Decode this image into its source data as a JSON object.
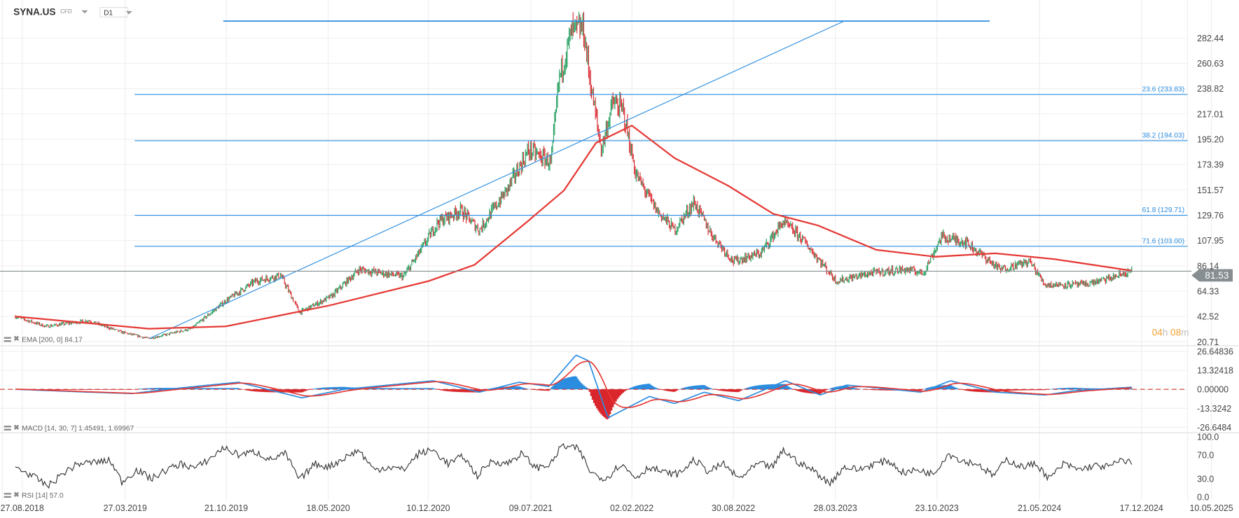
{
  "header": {
    "symbol": "SYNA.US",
    "instrument_type": "CFD",
    "timeframe": "D1"
  },
  "indicators": {
    "ema_label": "EMA [200, 0] 84.17",
    "macd_label": "MACD [14, 30, 7] 1.45491,  1.69967",
    "rsi_label": "RSI [14] 57.0"
  },
  "countdown": {
    "hours": "04",
    "h": "h",
    "minutes": "08",
    "m": "m"
  },
  "colors": {
    "up": "#1e9c5a",
    "down": "#d9262c",
    "ema": "#e53935",
    "fib": "#2b8de0",
    "macd": "#2b8de0",
    "signal": "#e53935",
    "rsi": "#333333",
    "price_tag": "#868e91"
  },
  "chart_data": [
    {
      "type": "line",
      "name": "price",
      "title": "SYNA.US D1",
      "current_price": "81.53",
      "y_ticks": [
        "282.44",
        "260.63",
        "238.82",
        "217.01",
        "195.20",
        "173.39",
        "151.57",
        "129.76",
        "107.95",
        "86.14",
        "64.33",
        "42.52",
        "20.71"
      ],
      "ylim": [
        20.71,
        282.44
      ],
      "x_ticks": [
        "27.08.2018",
        "27.03.2019",
        "21.10.2019",
        "18.05.2020",
        "10.12.2020",
        "09.07.2021",
        "02.02.2022",
        "30.08.2022",
        "28.03.2023",
        "23.10.2023",
        "21.05.2024",
        "17.12.2024",
        "10.05.2025"
      ],
      "x_tick_dates": [
        "2018-08-27",
        "2019-03-27",
        "2019-10-21",
        "2020-05-18",
        "2020-12-10",
        "2021-07-09",
        "2022-02-02",
        "2022-08-30",
        "2023-03-28",
        "2023-10-23",
        "2024-05-21",
        "2024-12-17",
        "2025-05-10"
      ],
      "close": [
        [
          "2018-08-13",
          42.5
        ],
        [
          "2018-10-15",
          34
        ],
        [
          "2019-01-10",
          39
        ],
        [
          "2019-03-20",
          29
        ],
        [
          "2019-05-15",
          23.5
        ],
        [
          "2019-08-10",
          32
        ],
        [
          "2019-10-20",
          56
        ],
        [
          "2019-12-20",
          73
        ],
        [
          "2020-02-10",
          78
        ],
        [
          "2020-03-20",
          46
        ],
        [
          "2020-05-25",
          60
        ],
        [
          "2020-07-20",
          83
        ],
        [
          "2020-10-20",
          77
        ],
        [
          "2020-11-25",
          100
        ],
        [
          "2020-12-30",
          124
        ],
        [
          "2021-02-15",
          134
        ],
        [
          "2021-03-25",
          117
        ],
        [
          "2021-05-20",
          151
        ],
        [
          "2021-07-05",
          186
        ],
        [
          "2021-08-20",
          175
        ],
        [
          "2021-09-05",
          247
        ],
        [
          "2021-10-01",
          288
        ],
        [
          "2021-10-25",
          291
        ],
        [
          "2021-11-10",
          240
        ],
        [
          "2021-12-01",
          186
        ],
        [
          "2021-12-25",
          227
        ],
        [
          "2022-01-15",
          220
        ],
        [
          "2022-02-10",
          165
        ],
        [
          "2022-03-25",
          134
        ],
        [
          "2022-05-01",
          117
        ],
        [
          "2022-06-10",
          141
        ],
        [
          "2022-07-15",
          114
        ],
        [
          "2022-08-30",
          90
        ],
        [
          "2022-10-25",
          97
        ],
        [
          "2022-12-10",
          124
        ],
        [
          "2023-01-15",
          111
        ],
        [
          "2023-02-25",
          90
        ],
        [
          "2023-03-30",
          73
        ],
        [
          "2023-06-10",
          80
        ],
        [
          "2023-08-20",
          83
        ],
        [
          "2023-09-25",
          80
        ],
        [
          "2023-11-01",
          111
        ],
        [
          "2023-12-20",
          107
        ],
        [
          "2024-03-01",
          83
        ],
        [
          "2024-05-01",
          90
        ],
        [
          "2024-06-01",
          70
        ],
        [
          "2024-08-20",
          70
        ],
        [
          "2024-10-10",
          75
        ],
        [
          "2024-11-27",
          81.53
        ]
      ],
      "ema200": [
        [
          "2018-08-13",
          42.5
        ],
        [
          "2019-05-15",
          32
        ],
        [
          "2019-10-20",
          34
        ],
        [
          "2020-05-20",
          52
        ],
        [
          "2020-12-10",
          73
        ],
        [
          "2021-03-15",
          87
        ],
        [
          "2021-07-01",
          124
        ],
        [
          "2021-09-15",
          151
        ],
        [
          "2021-11-20",
          192
        ],
        [
          "2022-02-02",
          207
        ],
        [
          "2022-05-01",
          179
        ],
        [
          "2022-08-20",
          155
        ],
        [
          "2022-11-20",
          131
        ],
        [
          "2023-02-20",
          121
        ],
        [
          "2023-06-20",
          100
        ],
        [
          "2023-10-20",
          94
        ],
        [
          "2024-02-20",
          97
        ],
        [
          "2024-06-20",
          92
        ],
        [
          "2024-11-27",
          82
        ]
      ],
      "fibonacci": [
        {
          "label": "23.6 (233.83)",
          "value": 233.83
        },
        {
          "label": "38.2 (194.03)",
          "value": 194.03
        },
        {
          "label": "61.8 (129.71)",
          "value": 129.71
        },
        {
          "label": "71.6 (103.00)",
          "value": 103.0
        }
      ],
      "fib_top": 297,
      "trendline": [
        [
          "2019-05-15",
          23.5
        ],
        [
          "2023-04-15",
          297
        ]
      ]
    },
    {
      "type": "line",
      "name": "MACD",
      "params": [
        14,
        30,
        7
      ],
      "ylim": [
        -26.6484,
        26.64836
      ],
      "y_ticks": [
        "26.64836",
        "13.32418",
        "0.00000",
        "-13.3242",
        "-26.6484"
      ],
      "macd": [
        [
          "2018-08-13",
          0
        ],
        [
          "2019-01-10",
          -2
        ],
        [
          "2019-04-10",
          -3
        ],
        [
          "2019-06-20",
          0
        ],
        [
          "2019-11-15",
          5
        ],
        [
          "2020-03-25",
          -6
        ],
        [
          "2020-06-20",
          0
        ],
        [
          "2020-12-20",
          6
        ],
        [
          "2021-03-25",
          -2
        ],
        [
          "2021-06-15",
          5
        ],
        [
          "2021-08-15",
          2
        ],
        [
          "2021-10-10",
          24
        ],
        [
          "2021-11-05",
          20
        ],
        [
          "2021-12-15",
          -20
        ],
        [
          "2022-03-10",
          -5
        ],
        [
          "2022-05-01",
          -10
        ],
        [
          "2022-07-01",
          -2
        ],
        [
          "2022-09-10",
          -8
        ],
        [
          "2022-12-15",
          6
        ],
        [
          "2023-02-25",
          -4
        ],
        [
          "2023-04-20",
          3
        ],
        [
          "2023-09-20",
          -2
        ],
        [
          "2023-11-20",
          6
        ],
        [
          "2024-02-20",
          -2
        ],
        [
          "2024-06-01",
          -4
        ],
        [
          "2024-08-01",
          -1
        ],
        [
          "2024-11-27",
          1.5
        ]
      ]
    },
    {
      "type": "line",
      "name": "RSI",
      "params": [
        14
      ],
      "ylim": [
        0,
        100
      ],
      "y_ticks": [
        "100.0",
        "70.0",
        "30.0",
        "0.0"
      ],
      "values": [
        [
          "2018-08-13",
          50
        ],
        [
          "2018-09-10",
          38
        ],
        [
          "2018-10-20",
          18
        ],
        [
          "2018-11-20",
          40
        ],
        [
          "2018-12-20",
          55
        ],
        [
          "2019-01-25",
          58
        ],
        [
          "2019-02-25",
          60
        ],
        [
          "2019-03-20",
          25
        ],
        [
          "2019-04-20",
          45
        ],
        [
          "2019-05-20",
          30
        ],
        [
          "2019-06-20",
          45
        ],
        [
          "2019-07-20",
          55
        ],
        [
          "2019-08-20",
          48
        ],
        [
          "2019-09-20",
          65
        ],
        [
          "2019-10-15",
          82
        ],
        [
          "2019-11-15",
          70
        ],
        [
          "2019-12-20",
          75
        ],
        [
          "2020-01-20",
          62
        ],
        [
          "2020-02-20",
          72
        ],
        [
          "2020-03-20",
          28
        ],
        [
          "2020-04-20",
          55
        ],
        [
          "2020-05-20",
          50
        ],
        [
          "2020-06-20",
          65
        ],
        [
          "2020-07-20",
          78
        ],
        [
          "2020-08-20",
          45
        ],
        [
          "2020-09-20",
          50
        ],
        [
          "2020-10-20",
          45
        ],
        [
          "2020-11-20",
          72
        ],
        [
          "2020-12-20",
          78
        ],
        [
          "2021-01-20",
          55
        ],
        [
          "2021-02-20",
          68
        ],
        [
          "2021-03-20",
          35
        ],
        [
          "2021-04-20",
          60
        ],
        [
          "2021-05-20",
          55
        ],
        [
          "2021-06-20",
          72
        ],
        [
          "2021-07-20",
          48
        ],
        [
          "2021-08-20",
          55
        ],
        [
          "2021-09-10",
          85
        ],
        [
          "2021-10-15",
          80
        ],
        [
          "2021-11-10",
          40
        ],
        [
          "2021-12-10",
          30
        ],
        [
          "2022-01-10",
          55
        ],
        [
          "2022-02-10",
          32
        ],
        [
          "2022-03-10",
          50
        ],
        [
          "2022-04-10",
          40
        ],
        [
          "2022-05-10",
          38
        ],
        [
          "2022-06-10",
          62
        ],
        [
          "2022-07-10",
          42
        ],
        [
          "2022-08-10",
          55
        ],
        [
          "2022-09-10",
          30
        ],
        [
          "2022-10-20",
          55
        ],
        [
          "2022-11-20",
          50
        ],
        [
          "2022-12-10",
          78
        ],
        [
          "2023-01-15",
          55
        ],
        [
          "2023-02-15",
          42
        ],
        [
          "2023-03-15",
          22
        ],
        [
          "2023-04-15",
          50
        ],
        [
          "2023-05-15",
          45
        ],
        [
          "2023-06-15",
          55
        ],
        [
          "2023-07-15",
          60
        ],
        [
          "2023-08-15",
          40
        ],
        [
          "2023-09-15",
          45
        ],
        [
          "2023-10-15",
          38
        ],
        [
          "2023-11-15",
          72
        ],
        [
          "2023-12-15",
          60
        ],
        [
          "2024-01-15",
          55
        ],
        [
          "2024-02-15",
          35
        ],
        [
          "2024-03-15",
          62
        ],
        [
          "2024-04-15",
          50
        ],
        [
          "2024-05-15",
          55
        ],
        [
          "2024-06-10",
          30
        ],
        [
          "2024-07-10",
          55
        ],
        [
          "2024-08-10",
          45
        ],
        [
          "2024-09-10",
          52
        ],
        [
          "2024-10-10",
          50
        ],
        [
          "2024-11-10",
          62
        ],
        [
          "2024-11-27",
          57
        ]
      ]
    }
  ]
}
